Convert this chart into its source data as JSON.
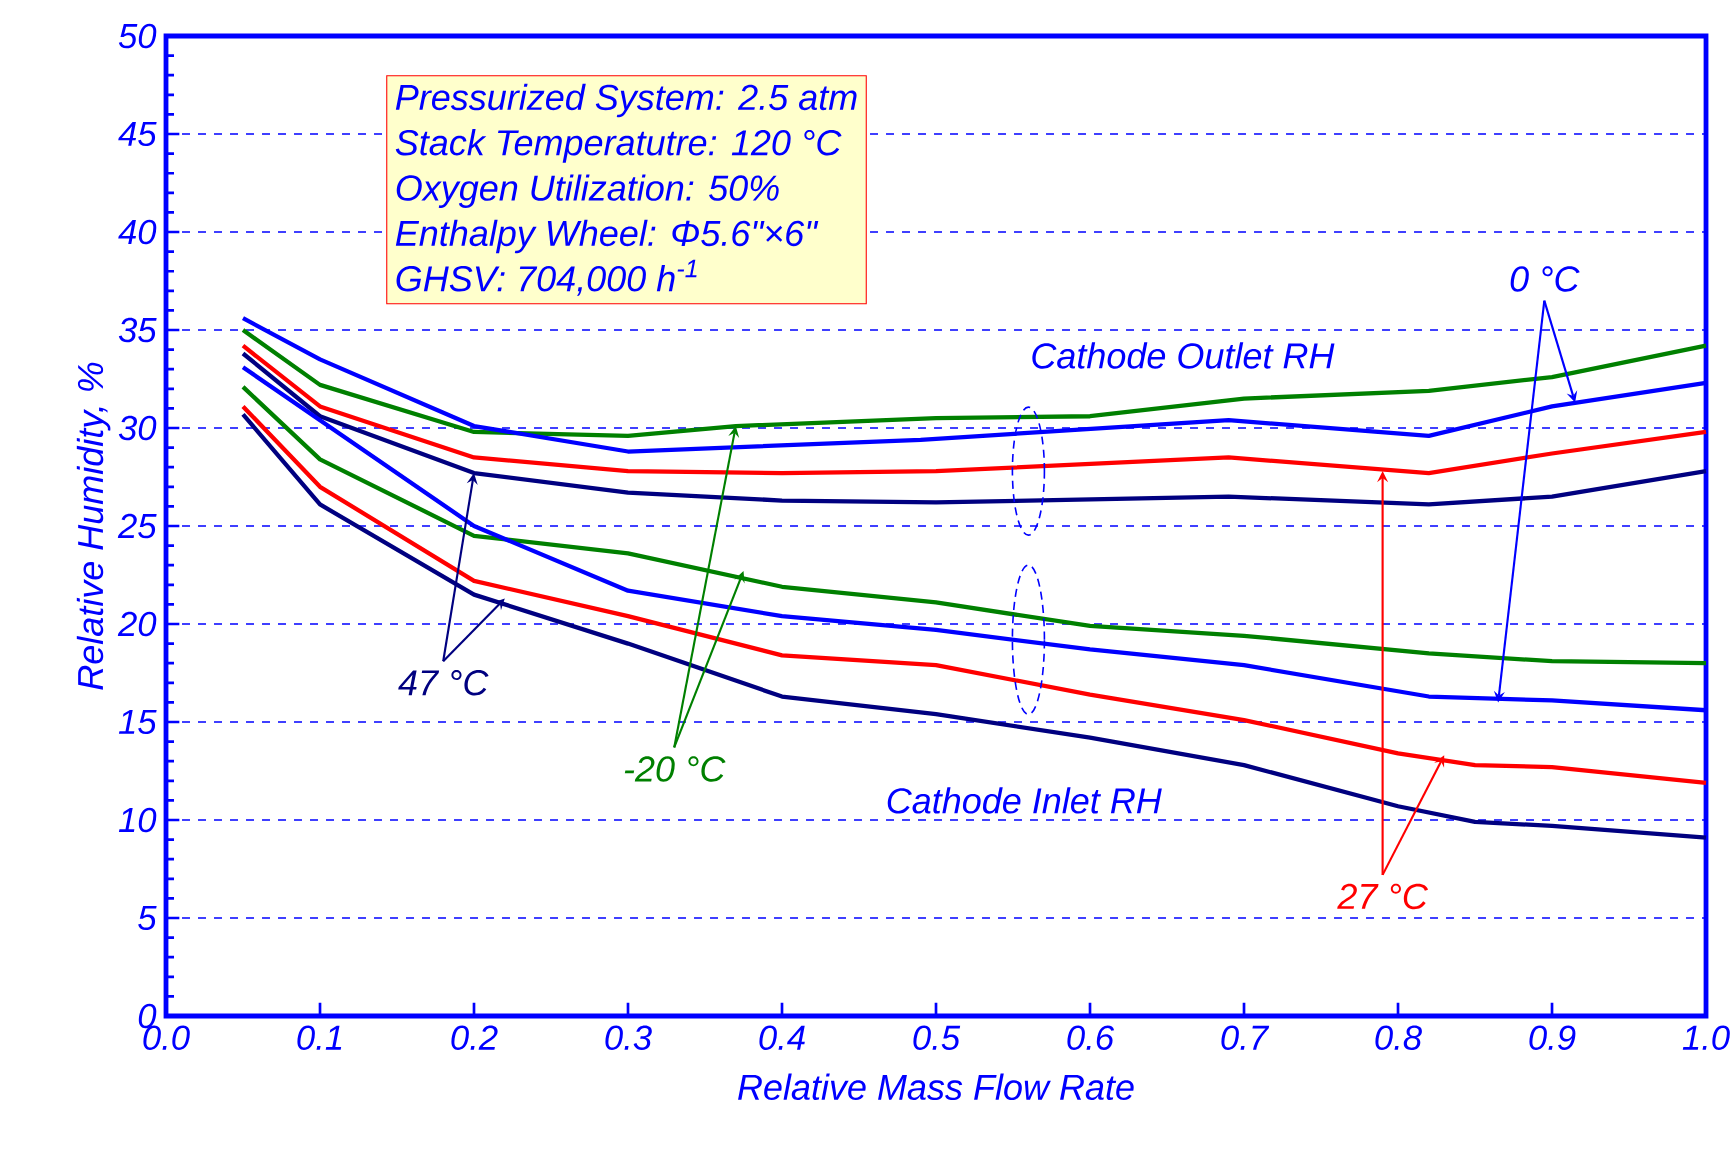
{
  "chart_data": {
    "type": "line",
    "xlabel": "Relative Mass Flow Rate",
    "ylabel": "Relative Humidity, %",
    "xlim": [
      0,
      1
    ],
    "ylim": [
      0,
      50
    ],
    "xticks": [
      {
        "value": 0,
        "label": "0.0"
      },
      {
        "value": 0.1,
        "label": "0.1"
      },
      {
        "value": 0.2,
        "label": "0.2"
      },
      {
        "value": 0.3,
        "label": "0.3"
      },
      {
        "value": 0.4,
        "label": "0.4"
      },
      {
        "value": 0.5,
        "label": "0.5"
      },
      {
        "value": 0.6,
        "label": "0.6"
      },
      {
        "value": 0.7,
        "label": "0.7"
      },
      {
        "value": 0.8,
        "label": "0.8"
      },
      {
        "value": 0.9,
        "label": "0.9"
      },
      {
        "value": 1,
        "label": "1.0"
      }
    ],
    "yticks": [
      0,
      5,
      10,
      15,
      20,
      25,
      30,
      35,
      40,
      45,
      50
    ],
    "grid": "y",
    "series": [
      {
        "color": "#008000",
        "x": [
          0.05,
          0.1,
          0.2,
          0.3,
          0.37,
          0.5,
          0.6,
          0.7,
          0.82,
          0.9,
          1.0
        ],
        "values": [
          35.0,
          32.2,
          29.8,
          29.6,
          30.1,
          30.5,
          30.6,
          31.5,
          31.9,
          32.6,
          34.2
        ]
      },
      {
        "color": "#0000ff",
        "x": [
          0.05,
          0.1,
          0.2,
          0.3,
          0.49,
          0.69,
          0.82,
          0.9,
          1.0
        ],
        "values": [
          35.6,
          33.5,
          30.1,
          28.8,
          29.4,
          30.4,
          29.6,
          31.1,
          32.3
        ]
      },
      {
        "color": "#ff0000",
        "x": [
          0.05,
          0.1,
          0.2,
          0.3,
          0.4,
          0.5,
          0.69,
          0.82,
          0.9,
          1.0
        ],
        "values": [
          34.2,
          31.1,
          28.5,
          27.8,
          27.7,
          27.8,
          28.5,
          27.7,
          28.7,
          29.8
        ]
      },
      {
        "color": "#000080",
        "x": [
          0.05,
          0.1,
          0.2,
          0.3,
          0.4,
          0.5,
          0.69,
          0.82,
          0.9,
          1.0
        ],
        "values": [
          33.8,
          30.6,
          27.7,
          26.7,
          26.3,
          26.2,
          26.5,
          26.1,
          26.5,
          27.8
        ]
      },
      {
        "color": "#008000",
        "x": [
          0.05,
          0.1,
          0.2,
          0.3,
          0.4,
          0.5,
          0.6,
          0.7,
          0.82,
          0.9,
          1.0
        ],
        "values": [
          32.1,
          28.4,
          24.5,
          23.6,
          21.9,
          21.1,
          19.9,
          19.4,
          18.5,
          18.1,
          18.0
        ]
      },
      {
        "color": "#0000ff",
        "x": [
          0.05,
          0.1,
          0.2,
          0.3,
          0.4,
          0.5,
          0.6,
          0.7,
          0.82,
          0.9,
          1.0
        ],
        "values": [
          33.1,
          30.4,
          25.0,
          21.7,
          20.4,
          19.7,
          18.7,
          17.9,
          16.3,
          16.1,
          15.6
        ]
      },
      {
        "color": "#ff0000",
        "x": [
          0.05,
          0.1,
          0.2,
          0.3,
          0.4,
          0.5,
          0.6,
          0.7,
          0.8,
          0.85,
          0.9,
          1.0
        ],
        "values": [
          31.1,
          27.0,
          22.2,
          20.4,
          18.4,
          17.9,
          16.4,
          15.1,
          13.4,
          12.8,
          12.7,
          11.9
        ]
      },
      {
        "color": "#000080",
        "x": [
          0.05,
          0.1,
          0.2,
          0.3,
          0.4,
          0.5,
          0.6,
          0.7,
          0.8,
          0.85,
          0.9,
          1.0
        ],
        "values": [
          30.7,
          26.1,
          21.5,
          19.0,
          16.3,
          15.4,
          14.2,
          12.8,
          10.7,
          9.9,
          9.7,
          9.1
        ]
      }
    ],
    "annotations": [
      "Pressurized System: 2.5 atm",
      "Stack Temperatutre: 120 °C",
      "Oxygen Utilization: 50%",
      "Enthalpy Wheel: Φ5.6\"×6\"",
      "GHSV: 704,000 h$^{-1}$",
      "Cathode Outlet RH",
      "Cathode Inlet RH",
      {
        "text": "0 °C",
        "x": 0.915,
        "y": 31.3
      },
      {
        "text": "-20 °C",
        "x": 0.37,
        "y": 30.1
      },
      {
        "text": "27 °C",
        "x": 0.79,
        "y": 27.8
      },
      {
        "text": "47 °C",
        "x": 0.2,
        "y": 27.7
      }
    ]
  }
}
